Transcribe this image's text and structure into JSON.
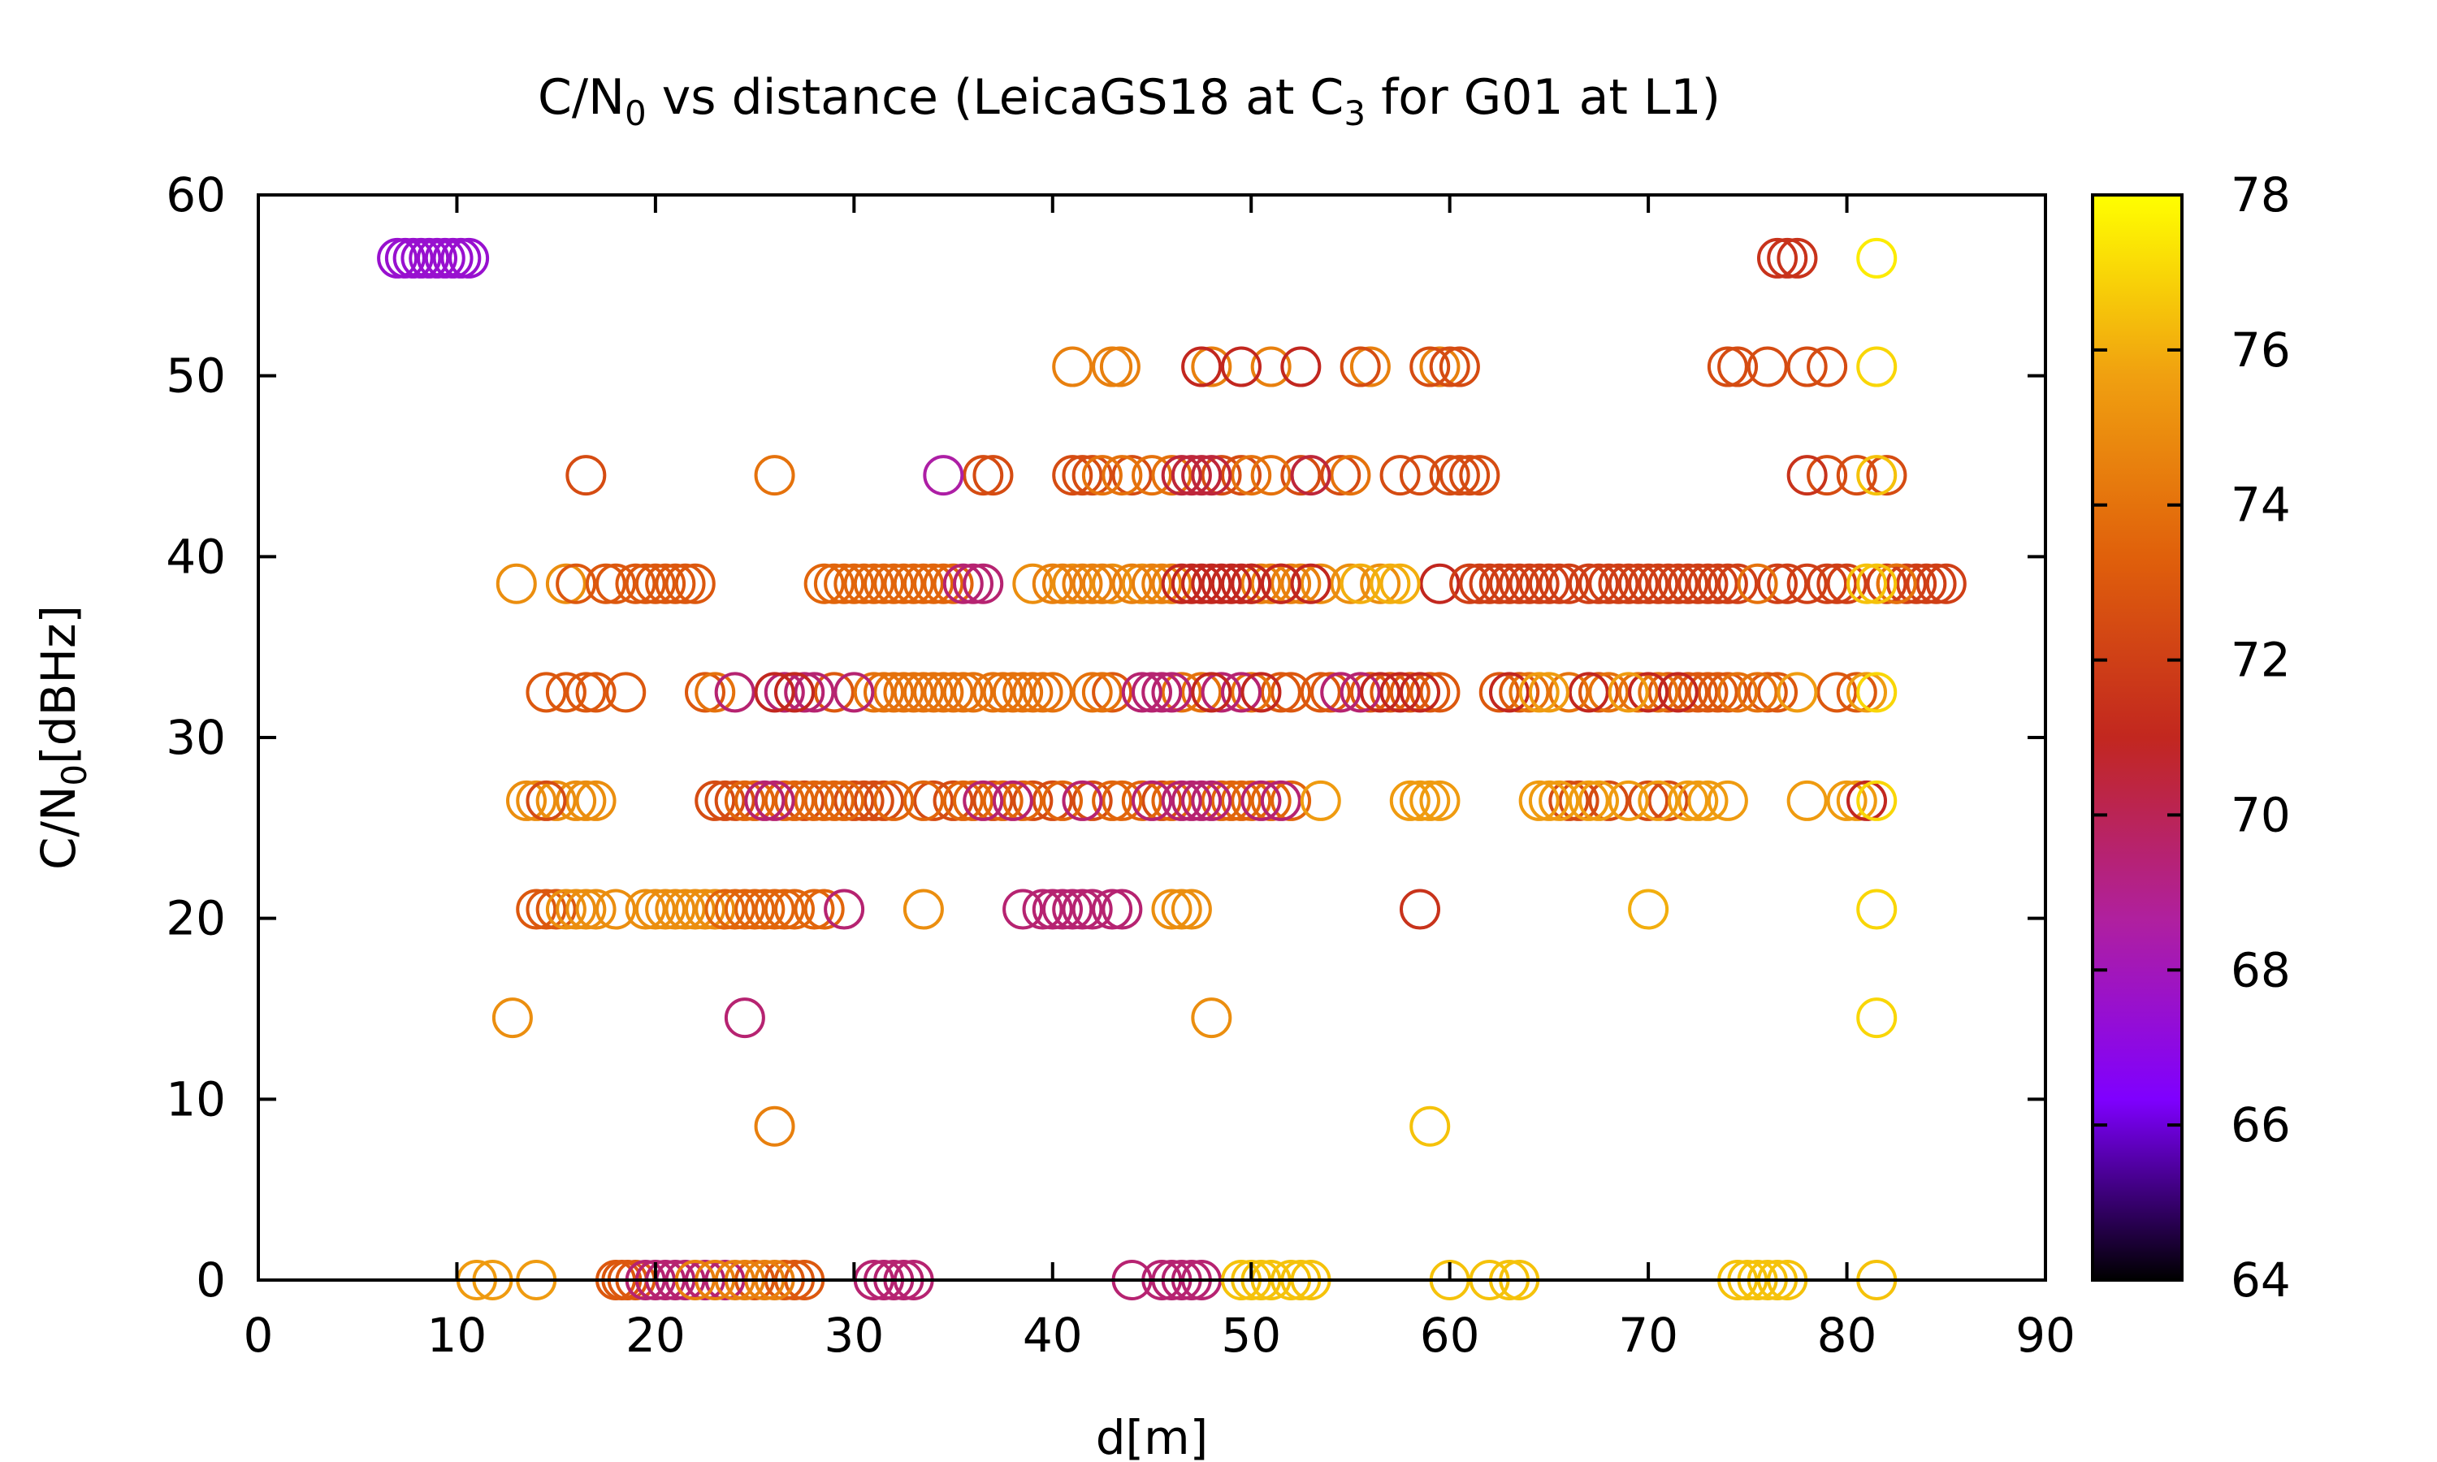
{
  "chart_data": {
    "type": "scatter",
    "title": {
      "main": "C/N",
      "sub": "0",
      "mid": " vs distance (LeicaGS18 at C",
      "sub2": "3",
      "tail": " for G01 at L1)"
    },
    "xlabel": "d[m]",
    "ylabel": {
      "main": "C/N",
      "sub": "0",
      "tail": "[dBHz]"
    },
    "xlim": [
      0,
      90
    ],
    "ylim": [
      0,
      60
    ],
    "x_ticks": [
      "0",
      "10",
      "20",
      "30",
      "40",
      "50",
      "60",
      "70",
      "80",
      "90"
    ],
    "y_ticks": [
      "0",
      "10",
      "20",
      "30",
      "40",
      "50",
      "60"
    ],
    "colorbar": {
      "range": [
        64,
        78
      ],
      "ticks": [
        "64",
        "66",
        "68",
        "70",
        "72",
        "74",
        "76",
        "78"
      ],
      "palette": [
        "#000000",
        "#7f00ff",
        "#b0209e",
        "#c2271f",
        "#e0600b",
        "#f0a010",
        "#ffff00"
      ]
    },
    "marker": "open-circle",
    "grid": false,
    "rows": [
      {
        "y": 56.5,
        "groups": [
          {
            "c": 67.5,
            "x": [
              7.0,
              7.4,
              7.8,
              8.2,
              8.6,
              9.0,
              9.4,
              9.8,
              10.2,
              10.6
            ]
          },
          {
            "c": 71.5,
            "x": [
              76.5,
              77.0,
              77.5
            ]
          },
          {
            "c": 77.5,
            "x": [
              81.5
            ]
          }
        ]
      },
      {
        "y": 50.5,
        "groups": [
          {
            "c": 74.5,
            "x": [
              41.0,
              43.0,
              43.4,
              48.0,
              51.0,
              56.0,
              59.5
            ]
          },
          {
            "c": 71.0,
            "x": [
              47.5,
              49.5,
              52.5
            ]
          },
          {
            "c": 72.5,
            "x": [
              55.5,
              59.0,
              60.0,
              60.5,
              74.0,
              74.5,
              76.0,
              78.0,
              79.0
            ]
          },
          {
            "c": 77.0,
            "x": [
              81.5
            ]
          }
        ]
      },
      {
        "y": 44.5,
        "groups": [
          {
            "c": 72.5,
            "x": [
              16.5,
              36.5,
              37.0,
              41.0,
              41.5,
              42.0,
              44.0,
              48.5,
              49.5,
              52.5,
              54.5,
              57.5,
              58.5,
              60.0,
              60.5,
              61.0,
              61.5,
              79.0,
              80.5,
              82.0
            ]
          },
          {
            "c": 74.0,
            "x": [
              26.0,
              42.5,
              43.5,
              45.0,
              46.0,
              50.0,
              51.0,
              55.0
            ]
          },
          {
            "c": 68.5,
            "x": [
              34.5
            ]
          },
          {
            "c": 70.5,
            "x": [
              46.5,
              47.0,
              47.5,
              48.0,
              53.0
            ]
          },
          {
            "c": 71.5,
            "x": [
              78.0
            ]
          },
          {
            "c": 76.5,
            "x": [
              81.5
            ]
          }
        ]
      },
      {
        "y": 38.5,
        "groups": [
          {
            "c": 75.0,
            "x": [
              13.0,
              15.5,
              39.0,
              41.0,
              43.0,
              44.5,
              53.5,
              55.0,
              56.5
            ]
          },
          {
            "c": 73.0,
            "x": [
              16.0,
              17.5,
              18.0,
              19.0,
              19.5,
              20.0,
              20.5,
              21.0,
              21.5,
              22.0
            ]
          },
          {
            "c": 73.5,
            "x": [
              28.5,
              29.0,
              29.5,
              30.0,
              30.5,
              31.0,
              31.5,
              32.0,
              32.5,
              33.0,
              33.5,
              34.0,
              34.5,
              35.0
            ]
          },
          {
            "c": 69.5,
            "x": [
              35.5,
              36.0,
              36.5
            ]
          },
          {
            "c": 74.5,
            "x": [
              40.0,
              40.5,
              41.5,
              42.0,
              42.5,
              44.0,
              45.0,
              45.5,
              46.0,
              50.0,
              50.5,
              51.0,
              51.5,
              52.0,
              52.5
            ]
          },
          {
            "c": 71.0,
            "x": [
              46.5,
              47.0,
              47.5,
              48.0,
              48.5,
              49.0,
              49.5,
              50.0,
              51.5,
              53.0,
              59.5
            ]
          },
          {
            "c": 76.0,
            "x": [
              55.5,
              57.0,
              57.5
            ]
          },
          {
            "c": 72.0,
            "x": [
              61.0,
              61.5,
              62.0,
              62.5,
              63.0,
              63.5,
              64.0,
              64.5,
              65.0,
              65.5,
              66.0,
              67.0,
              67.5,
              68.0,
              68.5,
              69.0,
              69.5,
              70.0,
              70.5,
              71.0,
              71.5,
              72.0,
              72.5,
              73.0,
              73.5,
              74.0,
              74.5,
              76.5,
              77.0,
              78.0,
              79.0,
              79.5,
              80.0,
              82.0,
              82.5,
              83.0,
              83.5,
              84.0,
              84.5,
              85.0
            ]
          },
          {
            "c": 74.0,
            "x": [
              75.5,
              82.5
            ]
          },
          {
            "c": 76.5,
            "x": [
              81.0,
              81.5
            ]
          }
        ]
      },
      {
        "y": 32.5,
        "groups": [
          {
            "c": 73.0,
            "x": [
              14.5,
              15.5,
              16.5,
              17.0,
              18.5,
              22.5,
              29.0,
              43.0,
              51.5,
              52.0,
              53.5,
              54.0,
              56.0,
              57.0,
              58.0,
              59.0,
              59.5,
              62.5,
              63.5,
              67.5,
              71.0,
              72.0,
              72.5,
              73.0,
              73.5,
              74.0,
              76.0,
              76.5,
              79.5,
              80.5
            ]
          },
          {
            "c": 74.0,
            "x": [
              23.0,
              31.0,
              31.5,
              32.0,
              32.5,
              33.0,
              33.5,
              34.0,
              34.5,
              35.0,
              35.5,
              36.0,
              37.0,
              37.5,
              38.0,
              38.5,
              39.0,
              39.5,
              40.0,
              42.0,
              42.5,
              46.5,
              47.5,
              50.0,
              64.0,
              66.0,
              68.0,
              69.5,
              70.5,
              74.5,
              75.5
            ]
          },
          {
            "c": 69.5,
            "x": [
              24.0,
              26.5,
              27.5,
              28.0,
              30.0,
              44.5,
              45.0,
              45.5,
              46.0,
              48.5,
              49.5,
              54.5,
              55.5
            ]
          },
          {
            "c": 71.0,
            "x": [
              26.0,
              27.0,
              48.0,
              50.5,
              56.5,
              57.5,
              58.5,
              63.0,
              67.0,
              70.0,
              71.5
            ]
          },
          {
            "c": 75.5,
            "x": [
              64.5,
              65.0,
              69.0,
              77.5,
              81.0
            ]
          },
          {
            "c": 77.0,
            "x": [
              81.5
            ]
          }
        ]
      },
      {
        "y": 26.5,
        "groups": [
          {
            "c": 75.0,
            "x": [
              13.5,
              14.0,
              15.0,
              16.0,
              16.5,
              17.0
            ]
          },
          {
            "c": 72.5,
            "x": [
              14.5,
              23.0,
              23.5,
              24.0,
              27.5,
              30.0,
              30.5,
              31.0,
              31.5,
              34.0,
              35.0,
              37.0,
              39.0,
              40.0,
              42.0,
              45.5,
              66.0,
              66.5,
              68.0,
              70.0,
              71.0
            ]
          },
          {
            "c": 73.5,
            "x": [
              24.5,
              25.0,
              26.5,
              27.0,
              28.0,
              28.5,
              29.0,
              29.5,
              32.0,
              33.5,
              35.5,
              36.0,
              37.5,
              38.5,
              40.5,
              43.0,
              43.5,
              44.5,
              46.0,
              48.5,
              49.0,
              49.5,
              50.0,
              51.0,
              52.0
            ]
          },
          {
            "c": 69.5,
            "x": [
              25.5,
              26.0,
              36.5,
              38.0,
              41.5,
              45.0,
              46.5,
              47.0,
              47.5,
              48.0,
              50.5,
              51.5
            ]
          },
          {
            "c": 75.5,
            "x": [
              53.5,
              58.0,
              58.5,
              59.0,
              59.5,
              64.5,
              65.0,
              65.5,
              67.0,
              67.5,
              69.0,
              70.5,
              72.0,
              72.5,
              73.0,
              74.0,
              78.0,
              80.0,
              80.5
            ]
          },
          {
            "c": 71.0,
            "x": [
              81.0
            ]
          },
          {
            "c": 77.0,
            "x": [
              81.5
            ]
          }
        ]
      },
      {
        "y": 20.5,
        "groups": [
          {
            "c": 73.0,
            "x": [
              14.0,
              14.5,
              15.0
            ]
          },
          {
            "c": 75.0,
            "x": [
              15.5,
              16.0,
              16.5,
              17.0,
              18.0,
              19.5,
              20.0,
              20.5,
              21.0,
              21.5,
              22.0,
              22.5,
              23.0,
              33.5,
              46.0,
              46.5,
              47.0
            ]
          },
          {
            "c": 73.5,
            "x": [
              23.5,
              24.0,
              24.5,
              25.0,
              25.5,
              26.0,
              26.5,
              27.0,
              28.0,
              28.5
            ]
          },
          {
            "c": 69.5,
            "x": [
              29.5,
              38.5,
              39.5,
              40.0,
              40.5,
              41.0,
              41.5,
              42.0,
              43.0,
              43.5
            ]
          },
          {
            "c": 71.5,
            "x": [
              58.5
            ]
          },
          {
            "c": 76.0,
            "x": [
              70.0
            ]
          },
          {
            "c": 77.0,
            "x": [
              81.5
            ]
          }
        ]
      },
      {
        "y": 14.5,
        "groups": [
          {
            "c": 75.0,
            "x": [
              12.8,
              48.0
            ]
          },
          {
            "c": 69.5,
            "x": [
              24.5
            ]
          },
          {
            "c": 77.0,
            "x": [
              81.5
            ]
          }
        ]
      },
      {
        "y": 8.5,
        "groups": [
          {
            "c": 74.5,
            "x": [
              26.0
            ]
          },
          {
            "c": 76.5,
            "x": [
              59.0
            ]
          }
        ]
      },
      {
        "y": 0.0,
        "groups": [
          {
            "c": 75.5,
            "x": [
              11.0,
              11.8,
              14.0
            ]
          },
          {
            "c": 73.0,
            "x": [
              18.0,
              18.3,
              18.6,
              19.0,
              25.0,
              26.5,
              27.0,
              27.5
            ]
          },
          {
            "c": 69.5,
            "x": [
              19.5,
              20.0,
              20.5,
              21.0,
              21.5,
              22.5,
              23.5,
              31.0,
              31.5,
              32.0,
              32.5,
              33.0,
              44.0,
              45.5,
              46.0,
              46.5,
              47.0,
              47.5
            ]
          },
          {
            "c": 74.5,
            "x": [
              22.0,
              23.0,
              24.0,
              24.5,
              25.5,
              26.0
            ]
          },
          {
            "c": 76.5,
            "x": [
              49.5,
              50.0,
              50.5,
              51.0,
              52.0,
              52.5,
              53.0,
              60.0,
              62.0,
              63.0,
              63.5,
              74.5,
              75.0,
              75.5,
              76.0,
              76.5,
              77.0,
              81.5
            ]
          }
        ]
      }
    ]
  }
}
